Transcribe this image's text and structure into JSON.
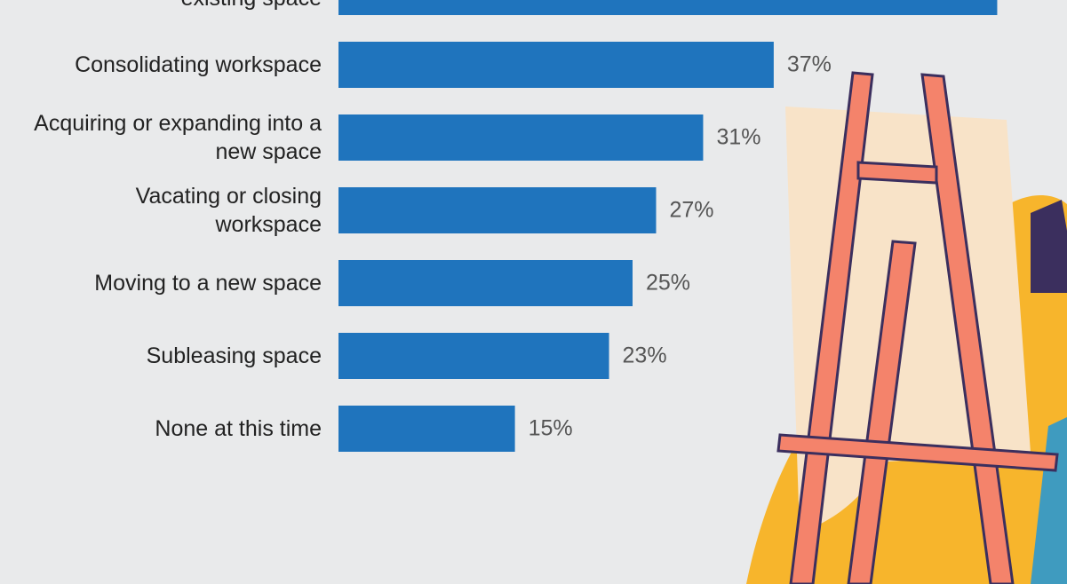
{
  "chart_data": {
    "type": "bar",
    "orientation": "horizontal",
    "categories": [
      "existing space",
      "Consolidating workspace",
      "Acquiring or expanding into a new space",
      "Vacating or closing workspace",
      "Moving to a new space",
      "Subleasing space",
      "None at this time"
    ],
    "values": [
      56,
      37,
      31,
      27,
      25,
      23,
      15
    ],
    "value_labels": [
      null,
      "37%",
      "31%",
      "27%",
      "25%",
      "23%",
      "15%"
    ],
    "color": "#1f74bd"
  }
}
